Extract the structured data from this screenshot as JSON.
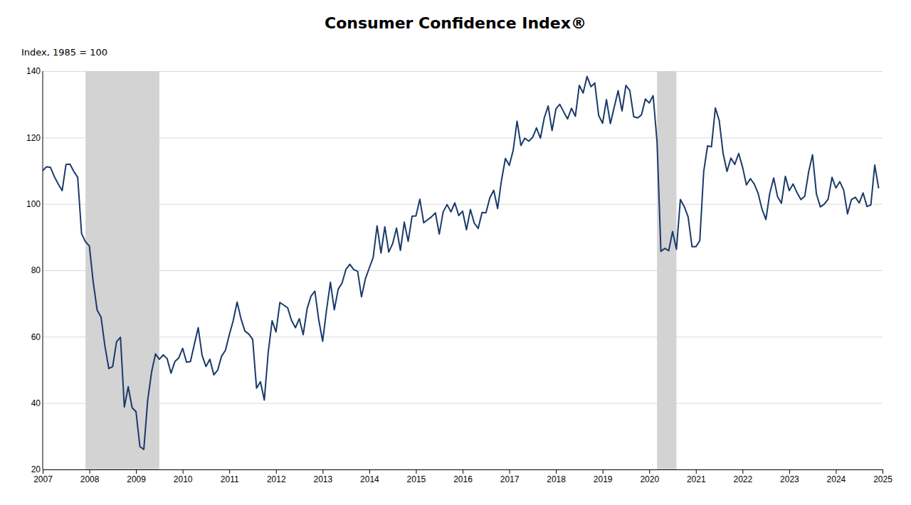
{
  "chart_data": {
    "type": "line",
    "title": "Consumer Confidence Index®",
    "ylabel": "Index, 1985 = 100",
    "color": "#1a3a6b",
    "grid": true,
    "spans": [
      {
        "x": [
          2007.917,
          2009.5
        ],
        "color": "#d3d3d3"
      },
      {
        "x": [
          2020.167,
          2020.583
        ],
        "color": "#d3d3d3"
      }
    ],
    "xlim": [
      2007,
      2025
    ],
    "ylim": [
      20,
      140
    ],
    "yticks": [
      20,
      40,
      60,
      80,
      100,
      120,
      140
    ],
    "xticks": [
      2007,
      2008,
      2009,
      2010,
      2011,
      2012,
      2013,
      2014,
      2015,
      2016,
      2017,
      2018,
      2019,
      2020,
      2021,
      2022,
      2023,
      2024,
      2025
    ],
    "x": [
      2007.0,
      2007.083,
      2007.167,
      2007.25,
      2007.333,
      2007.417,
      2007.5,
      2007.583,
      2007.667,
      2007.75,
      2007.833,
      2007.917,
      2008.0,
      2008.083,
      2008.167,
      2008.25,
      2008.333,
      2008.417,
      2008.5,
      2008.583,
      2008.667,
      2008.75,
      2008.833,
      2008.917,
      2009.0,
      2009.083,
      2009.167,
      2009.25,
      2009.333,
      2009.417,
      2009.5,
      2009.583,
      2009.667,
      2009.75,
      2009.833,
      2009.917,
      2010.0,
      2010.083,
      2010.167,
      2010.25,
      2010.333,
      2010.417,
      2010.5,
      2010.583,
      2010.667,
      2010.75,
      2010.833,
      2010.917,
      2011.0,
      2011.083,
      2011.167,
      2011.25,
      2011.333,
      2011.417,
      2011.5,
      2011.583,
      2011.667,
      2011.75,
      2011.833,
      2011.917,
      2012.0,
      2012.083,
      2012.167,
      2012.25,
      2012.333,
      2012.417,
      2012.5,
      2012.583,
      2012.667,
      2012.75,
      2012.833,
      2012.917,
      2013.0,
      2013.083,
      2013.167,
      2013.25,
      2013.333,
      2013.417,
      2013.5,
      2013.583,
      2013.667,
      2013.75,
      2013.833,
      2013.917,
      2014.0,
      2014.083,
      2014.167,
      2014.25,
      2014.333,
      2014.417,
      2014.5,
      2014.583,
      2014.667,
      2014.75,
      2014.833,
      2014.917,
      2015.0,
      2015.083,
      2015.167,
      2015.25,
      2015.333,
      2015.417,
      2015.5,
      2015.583,
      2015.667,
      2015.75,
      2015.833,
      2015.917,
      2016.0,
      2016.083,
      2016.167,
      2016.25,
      2016.333,
      2016.417,
      2016.5,
      2016.583,
      2016.667,
      2016.75,
      2016.833,
      2016.917,
      2017.0,
      2017.083,
      2017.167,
      2017.25,
      2017.333,
      2017.417,
      2017.5,
      2017.583,
      2017.667,
      2017.75,
      2017.833,
      2017.917,
      2018.0,
      2018.083,
      2018.167,
      2018.25,
      2018.333,
      2018.417,
      2018.5,
      2018.583,
      2018.667,
      2018.75,
      2018.833,
      2018.917,
      2019.0,
      2019.083,
      2019.167,
      2019.25,
      2019.333,
      2019.417,
      2019.5,
      2019.583,
      2019.667,
      2019.75,
      2019.833,
      2019.917,
      2020.0,
      2020.083,
      2020.167,
      2020.25,
      2020.333,
      2020.417,
      2020.5,
      2020.583,
      2020.667,
      2020.75,
      2020.833,
      2020.917,
      2021.0,
      2021.083,
      2021.167,
      2021.25,
      2021.333,
      2021.417,
      2021.5,
      2021.583,
      2021.667,
      2021.75,
      2021.833,
      2021.917,
      2022.0,
      2022.083,
      2022.167,
      2022.25,
      2022.333,
      2022.417,
      2022.5,
      2022.583,
      2022.667,
      2022.75,
      2022.833,
      2022.917,
      2023.0,
      2023.083,
      2023.167,
      2023.25,
      2023.333,
      2023.417,
      2023.5,
      2023.583,
      2023.667,
      2023.75,
      2023.833,
      2023.917,
      2024.0,
      2024.083,
      2024.167,
      2024.25,
      2024.333,
      2024.417,
      2024.5,
      2024.583,
      2024.667,
      2024.75,
      2024.833,
      2024.917
    ],
    "values": [
      110.0,
      111.2,
      111.0,
      108.2,
      106.0,
      104.0,
      111.9,
      112.0,
      109.8,
      108.0,
      91.0,
      88.6,
      87.3,
      76.4,
      68.0,
      65.9,
      57.2,
      50.4,
      51.0,
      58.5,
      59.8,
      38.8,
      44.9,
      38.6,
      37.4,
      26.9,
      26.0,
      40.8,
      49.3,
      54.8,
      53.2,
      54.5,
      53.4,
      49.0,
      52.5,
      53.6,
      56.5,
      52.3,
      52.5,
      57.7,
      62.7,
      54.3,
      51.0,
      53.2,
      48.5,
      49.9,
      54.1,
      55.9,
      60.6,
      64.8,
      70.4,
      65.4,
      61.7,
      60.8,
      59.2,
      44.5,
      46.4,
      40.9,
      55.2,
      64.8,
      61.4,
      70.3,
      69.5,
      68.7,
      64.9,
      62.7,
      65.4,
      60.6,
      68.4,
      72.2,
      73.7,
      65.0,
      58.6,
      68.0,
      76.4,
      68.1,
      74.3,
      76.2,
      80.3,
      81.8,
      80.2,
      79.7,
      72.0,
      77.5,
      80.7,
      83.9,
      93.4,
      85.2,
      93.1,
      85.5,
      88.0,
      92.7,
      86.0,
      94.5,
      88.7,
      96.3,
      96.4,
      101.4,
      94.3,
      95.2,
      96.1,
      97.3,
      90.9,
      97.6,
      99.8,
      97.6,
      100.3,
      96.5,
      97.8,
      92.2,
      98.3,
      94.2,
      92.6,
      97.4,
      97.3,
      101.8,
      104.1,
      98.6,
      107.1,
      113.7,
      111.6,
      116.1,
      124.9,
      117.6,
      119.8,
      118.9,
      120.0,
      122.9,
      119.8,
      125.9,
      129.5,
      122.1,
      128.6,
      130.0,
      127.7,
      125.6,
      128.8,
      126.4,
      135.7,
      133.4,
      138.4,
      135.3,
      136.4,
      126.6,
      124.3,
      131.4,
      124.2,
      129.2,
      134.1,
      128.0,
      135.7,
      134.2,
      126.3,
      125.9,
      126.8,
      131.6,
      130.4,
      132.6,
      118.8,
      85.7,
      86.6,
      85.9,
      91.7,
      86.3,
      101.3,
      99.2,
      96.1,
      87.1,
      87.1,
      88.9,
      109.7,
      117.5,
      117.2,
      128.9,
      125.1,
      115.2,
      109.8,
      113.8,
      111.9,
      115.2,
      111.1,
      105.7,
      107.6,
      106.0,
      103.2,
      98.4,
      95.3,
      103.2,
      107.8,
      102.2,
      100.2,
      108.3,
      104.0,
      106.0,
      103.4,
      101.3,
      102.3,
      109.7,
      114.8,
      103.0,
      99.1,
      99.9,
      101.4,
      108.0,
      104.8,
      106.7,
      104.2,
      97.0,
      101.3,
      102.0,
      100.3,
      103.3,
      99.2,
      99.7,
      111.7,
      104.7
    ]
  }
}
